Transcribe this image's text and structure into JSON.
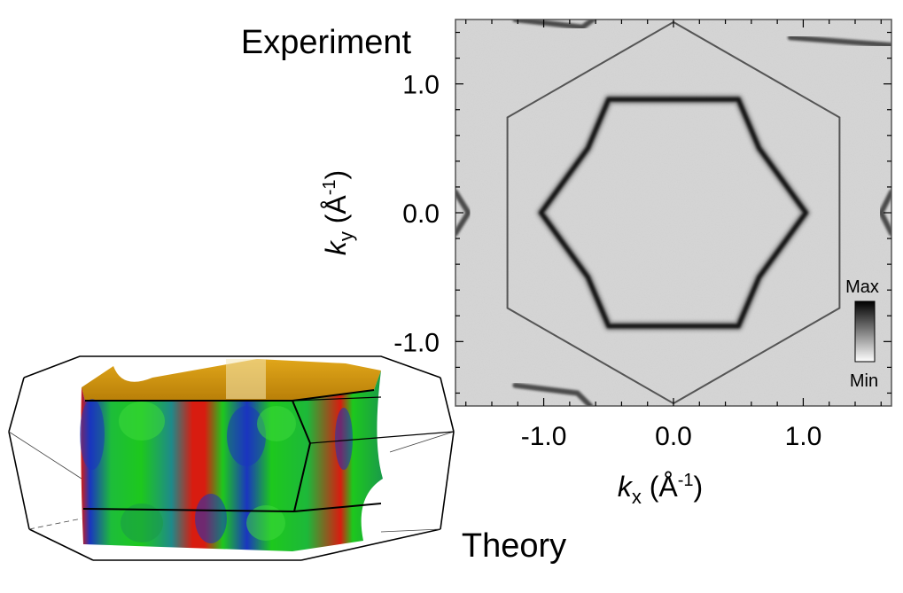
{
  "labels": {
    "experiment": "Experiment",
    "theory": "Theory"
  },
  "chart_data": {
    "type": "heatmap",
    "title": "Experiment",
    "xlabel": {
      "symbol": "k",
      "sub": "x",
      "unit_open": " (Å",
      "sup": "-1",
      "unit_close": ")"
    },
    "ylabel": {
      "symbol": "k",
      "sub": "y",
      "unit_open": " (Å",
      "sup": "-1",
      "unit_close": ")"
    },
    "xlim": [
      -1.68,
      1.68
    ],
    "ylim": [
      -1.5,
      1.5
    ],
    "x_ticks": [
      {
        "value": -1.0,
        "label": "-1.0"
      },
      {
        "value": 0.0,
        "label": "0.0"
      },
      {
        "value": 1.0,
        "label": "1.0"
      }
    ],
    "y_ticks": [
      {
        "value": 1.0,
        "label": "1.0"
      },
      {
        "value": 0.0,
        "label": "0.0"
      },
      {
        "value": -1.0,
        "label": "-1.0"
      }
    ],
    "brillouin_zone_vertices": [
      [
        0.0,
        1.48
      ],
      [
        1.28,
        0.74
      ],
      [
        1.28,
        -0.74
      ],
      [
        0.0,
        -1.48
      ],
      [
        -1.28,
        -0.74
      ],
      [
        -1.28,
        0.74
      ]
    ],
    "fermi_surface_vertices": [
      [
        0.0,
        0.88
      ],
      [
        0.5,
        0.88
      ],
      [
        0.66,
        0.5
      ],
      [
        1.02,
        0.0
      ],
      [
        0.66,
        -0.5
      ],
      [
        0.5,
        -0.88
      ],
      [
        -0.5,
        -0.88
      ],
      [
        -0.66,
        -0.5
      ],
      [
        -1.02,
        0.0
      ],
      [
        -0.66,
        0.5
      ],
      [
        -0.5,
        0.88
      ]
    ],
    "colorbar": {
      "max_label": "Max",
      "min_label": "Min"
    },
    "colors": {
      "frame": "#555555",
      "zone_line": "#555555",
      "fermi_line": "#151515"
    }
  },
  "theory_colors": {
    "top": "#c9900e",
    "green": "#1dc81d",
    "blue": "#1730c8",
    "red": "#d81c10"
  }
}
